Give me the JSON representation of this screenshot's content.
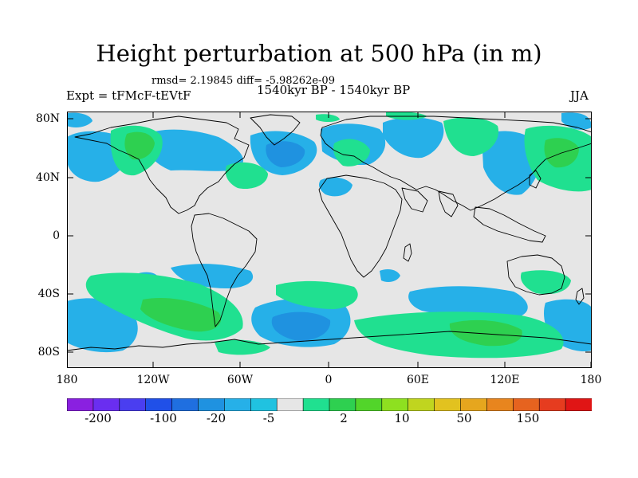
{
  "title": "Height perturbation at 500 hPa (in m)",
  "subtitle_stats": "rmsd= 2.19845 diff= -5.98262e-09",
  "experiment": "Expt = tFMcF-tEVtF",
  "period": "1540kyr BP - 1540kyr BP",
  "season": "JJA",
  "lat_labels": [
    "80N",
    "40N",
    "0",
    "40S",
    "80S"
  ],
  "lon_labels": [
    "180",
    "120W",
    "60W",
    "0",
    "60E",
    "120E",
    "180"
  ],
  "colorbar": {
    "labels": [
      "-200",
      "-100",
      "-20",
      "-5",
      "2",
      "10",
      "50",
      "150"
    ],
    "colors": [
      "#8a20e0",
      "#6a2ef0",
      "#4a3ef0",
      "#2050e8",
      "#1f6fe0",
      "#1f92e0",
      "#26b0e8",
      "#20c2e0",
      "#e6e6e6",
      "#20e090",
      "#2ed050",
      "#52d52a",
      "#8ee020",
      "#c0d51f",
      "#e2c21f",
      "#e6a61e",
      "#e8851e",
      "#e6631f",
      "#e63c1f",
      "#e01515"
    ]
  },
  "colors": {
    "background": "#e6e6e6",
    "frame": "#000000"
  }
}
